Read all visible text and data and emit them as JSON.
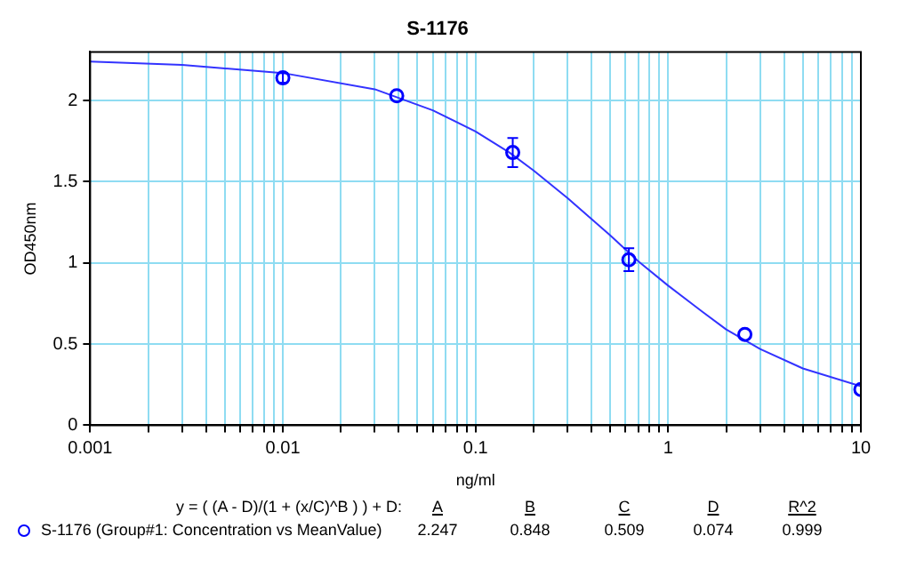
{
  "chart_data": {
    "type": "scatter",
    "title": "S-1176",
    "xlabel": "ng/ml",
    "ylabel": "OD450nm",
    "log": "x",
    "grid": true,
    "legend": "bottom",
    "xlim": [
      0.001,
      10
    ],
    "ylim": [
      0,
      2.3
    ],
    "xticks": [
      0.001,
      {
        "value": 0.002,
        "label": null
      },
      {
        "value": 0.003,
        "label": null
      },
      {
        "value": 0.004,
        "label": null
      },
      {
        "value": 0.005,
        "label": null
      },
      {
        "value": 0.006,
        "label": null
      },
      {
        "value": 0.007,
        "label": null
      },
      {
        "value": 0.008,
        "label": null
      },
      {
        "value": 0.009,
        "label": null
      },
      0.01,
      {
        "value": 0.02,
        "label": null
      },
      {
        "value": 0.03,
        "label": null
      },
      {
        "value": 0.04,
        "label": null
      },
      {
        "value": 0.05,
        "label": null
      },
      {
        "value": 0.06,
        "label": null
      },
      {
        "value": 0.07,
        "label": null
      },
      {
        "value": 0.08,
        "label": null
      },
      {
        "value": 0.09,
        "label": null
      },
      0.1,
      {
        "value": 0.2,
        "label": null
      },
      {
        "value": 0.3,
        "label": null
      },
      {
        "value": 0.4,
        "label": null
      },
      {
        "value": 0.5,
        "label": null
      },
      {
        "value": 0.6,
        "label": null
      },
      {
        "value": 0.7,
        "label": null
      },
      {
        "value": 0.8,
        "label": null
      },
      {
        "value": 0.9,
        "label": null
      },
      1,
      {
        "value": 2,
        "label": null
      },
      {
        "value": 3,
        "label": null
      },
      {
        "value": 4,
        "label": null
      },
      {
        "value": 5,
        "label": null
      },
      {
        "value": 6,
        "label": null
      },
      {
        "value": 7,
        "label": null
      },
      {
        "value": 8,
        "label": null
      },
      {
        "value": 9,
        "label": null
      },
      10
    ],
    "yticks": [
      0,
      0.5,
      1,
      1.5,
      2
    ],
    "series": [
      {
        "name": "S-1176 (Group#1: Concentration vs MeanValue)",
        "marker": "circle",
        "color": "#0000ff",
        "x": [
          0.01,
          0.039,
          0.156,
          0.625,
          2.5,
          10
        ],
        "values": [
          2.14,
          2.03,
          1.68,
          1.02,
          0.56,
          0.22
        ],
        "errors": [
          0.03,
          null,
          0.09,
          0.07,
          null,
          null
        ]
      },
      {
        "type": "line",
        "marker": "none",
        "color": "#3333ff",
        "x": [
          0.001,
          0.003,
          0.01,
          0.03,
          0.06,
          0.1,
          0.15,
          0.2,
          0.3,
          0.5,
          0.7,
          1,
          1.5,
          2,
          3,
          5,
          10
        ],
        "values": [
          2.24,
          2.22,
          2.17,
          2.07,
          1.94,
          1.81,
          1.68,
          1.57,
          1.4,
          1.17,
          1.01,
          0.86,
          0.7,
          0.59,
          0.47,
          0.35,
          0.24
        ]
      }
    ],
    "annotations": [
      "y = ( (A - D)/(1 + (x/C)^B ) ) + D:",
      "A",
      "B",
      "C",
      "D",
      "R^2",
      "2.247",
      "0.848",
      "0.509",
      "0.074",
      "0.999"
    ]
  }
}
